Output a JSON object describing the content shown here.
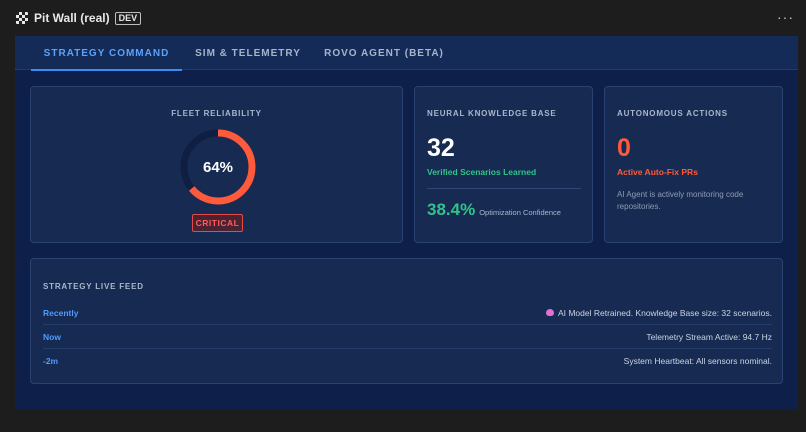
{
  "app": {
    "title": "Pit Wall (real)",
    "badge": "DEV",
    "more_icon": "ellipsis-icon"
  },
  "tabs": [
    {
      "label": "STRATEGY COMMAND",
      "active": true
    },
    {
      "label": "SIM & TELEMETRY",
      "active": false
    },
    {
      "label": "ROVO AGENT (BETA)",
      "active": false
    }
  ],
  "fleet": {
    "title": "FLEET RELIABILITY",
    "value_label": "64%",
    "value_fraction": 0.64,
    "status": "CRITICAL",
    "ring_color": "#ff5a3c"
  },
  "neural": {
    "title": "NEURAL KNOWLEDGE BASE",
    "count": "32",
    "count_label": "Verified Scenarios Learned",
    "confidence": "38.4%",
    "confidence_label": "Optimization Confidence"
  },
  "autonomous": {
    "title": "AUTONOMOUS ACTIONS",
    "count": "0",
    "count_label": "Active Auto-Fix PRs",
    "description": "AI Agent is actively monitoring code repositories."
  },
  "feed": {
    "title": "STRATEGY LIVE FEED",
    "items": [
      {
        "time": "Recently",
        "message": "AI Model Retrained. Knowledge Base size: 32 scenarios.",
        "icon": "brain-icon"
      },
      {
        "time": "Now",
        "message": "Telemetry Stream Active: 94.7 Hz"
      },
      {
        "time": "-2m",
        "message": "System Heartbeat: All sensors nominal."
      }
    ]
  },
  "colors": {
    "accent": "#3b8cf0",
    "success": "#2fc48a",
    "danger": "#ff5a3c"
  }
}
